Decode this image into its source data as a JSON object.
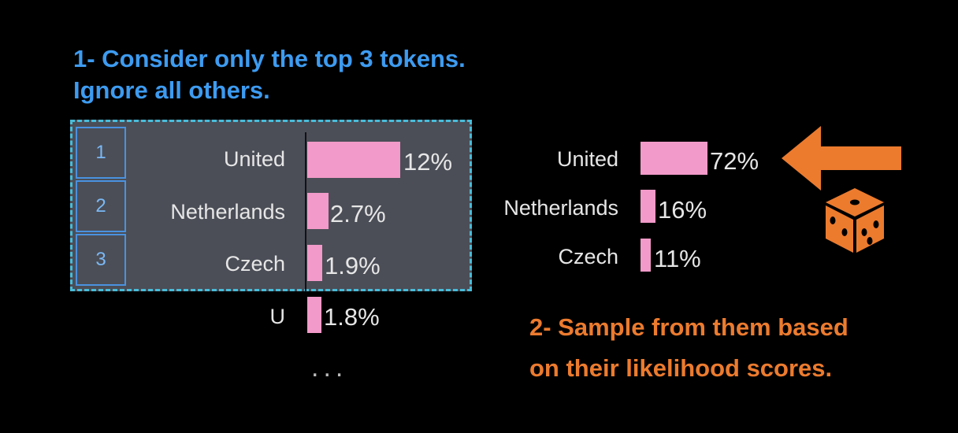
{
  "step1": {
    "line1": "1- Consider only the top 3 tokens.",
    "line2": "Ignore all others."
  },
  "step2": {
    "line1": "2- Sample from them based",
    "line2": "on their likelihood scores."
  },
  "left_list": {
    "ranks": [
      "1",
      "2",
      "3"
    ],
    "rows": [
      {
        "token": "United",
        "pct": "12%",
        "value": 12
      },
      {
        "token": "Netherlands",
        "pct": "2.7%",
        "value": 2.7
      },
      {
        "token": "Czech",
        "pct": "1.9%",
        "value": 1.9
      },
      {
        "token": "U",
        "pct": "1.8%",
        "value": 1.8
      }
    ],
    "ellipsis": "..."
  },
  "right_list": {
    "rows": [
      {
        "token": "United",
        "pct": "72%",
        "value": 72
      },
      {
        "token": "Netherlands",
        "pct": "16%",
        "value": 16
      },
      {
        "token": "Czech",
        "pct": "11%",
        "value": 11
      }
    ]
  },
  "icons": {
    "arrow": "left-arrow-icon",
    "dice": "dice-icon"
  },
  "colors": {
    "blue_text": "#3d9bf0",
    "orange": "#ec7b2e",
    "bar": "#f29ac9",
    "panel": "#4b4e57",
    "dashed_border": "#48bcd9"
  }
}
